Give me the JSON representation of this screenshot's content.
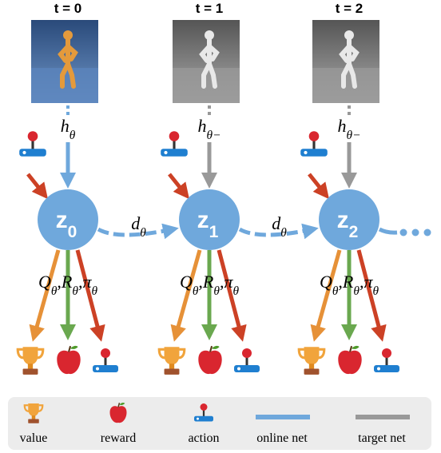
{
  "steps": [
    {
      "time_label": "t = 0",
      "encoder": {
        "symbol": "h",
        "subscript": "θ"
      },
      "latent": {
        "symbol": "z",
        "subscript": "0"
      }
    },
    {
      "time_label": "t = 1",
      "encoder": {
        "symbol": "h",
        "subscript": "θ−"
      },
      "latent": {
        "symbol": "z",
        "subscript": "1"
      }
    },
    {
      "time_label": "t = 2",
      "encoder": {
        "symbol": "h",
        "subscript": "θ−"
      },
      "latent": {
        "symbol": "z",
        "subscript": "2"
      }
    }
  ],
  "dynamics": {
    "symbol": "d",
    "subscript": "θ"
  },
  "heads": {
    "separator": ",",
    "items": [
      {
        "symbol": "Q",
        "subscript": "θ"
      },
      {
        "symbol": "R",
        "subscript": "θ"
      },
      {
        "symbol": "π",
        "subscript": "θ"
      }
    ]
  },
  "legend": [
    "value",
    "reward",
    "action",
    "online net",
    "target net"
  ]
}
